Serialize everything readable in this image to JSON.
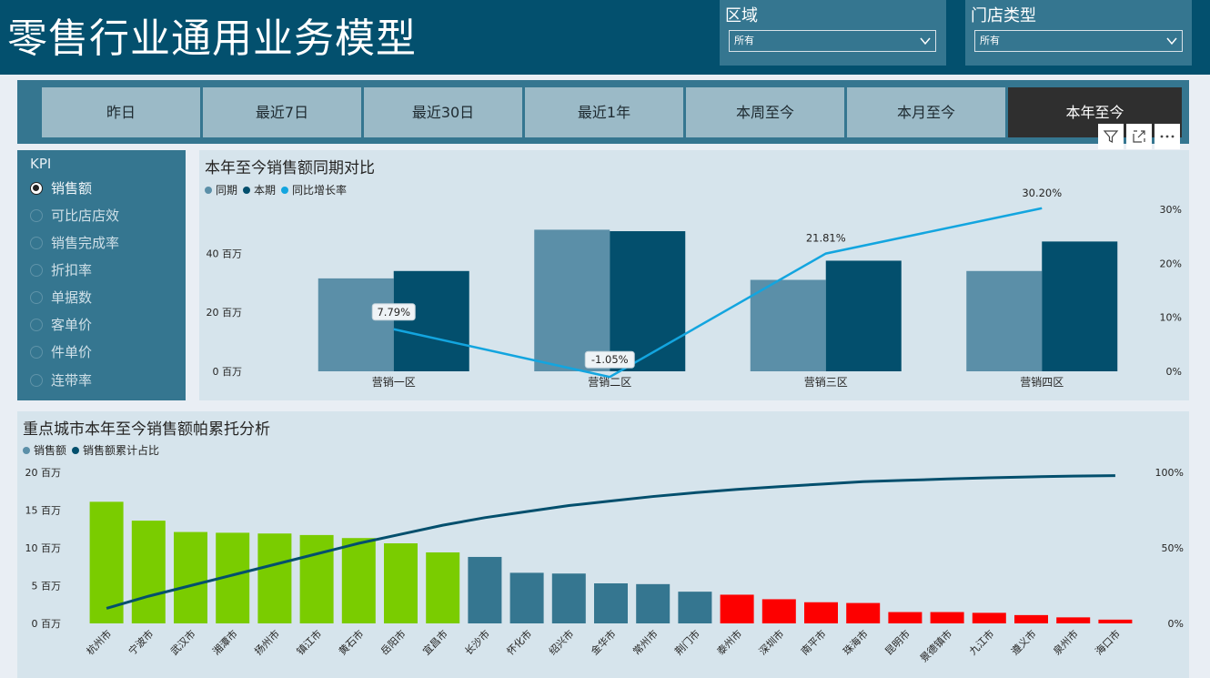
{
  "header": {
    "title": "零售行业通用业务模型",
    "filters": [
      {
        "label": "区域",
        "value": "所有"
      },
      {
        "label": "门店类型",
        "value": "所有"
      }
    ]
  },
  "period_tabs": [
    {
      "label": "昨日",
      "active": false
    },
    {
      "label": "最近7日",
      "active": false
    },
    {
      "label": "最近30日",
      "active": false
    },
    {
      "label": "最近1年",
      "active": false
    },
    {
      "label": "本周至今",
      "active": false
    },
    {
      "label": "本月至今",
      "active": false
    },
    {
      "label": "本年至今",
      "active": true
    }
  ],
  "toolbar": {
    "icons": [
      "filter-icon",
      "focus-mode-icon",
      "more-options-icon"
    ]
  },
  "kpi": {
    "title": "KPI",
    "items": [
      "销售额",
      "可比店店效",
      "销售完成率",
      "折扣率",
      "单据数",
      "客单价",
      "件单价",
      "连带率"
    ],
    "selected": "销售额"
  },
  "colors": {
    "prior": "#5b8fa8",
    "current": "#034f6d",
    "growth": "#13a5df",
    "top": "#7acc00",
    "mid": "#357690",
    "low": "#fd0000",
    "cumulative": "#034f6d"
  },
  "chart_data": [
    {
      "type": "bar",
      "title": "本年至今销售额同期对比",
      "categories": [
        "营销一区",
        "营销二区",
        "营销三区",
        "营销四区"
      ],
      "series": [
        {
          "name": "同期",
          "values": [
            31.5,
            48.0,
            31.0,
            34.0
          ]
        },
        {
          "name": "本期",
          "values": [
            34.0,
            47.5,
            37.5,
            44.0
          ]
        },
        {
          "name": "同比增长率",
          "type": "line",
          "axis": "right",
          "values": [
            7.79,
            -1.05,
            21.81,
            30.2
          ],
          "labels": [
            "7.79%",
            "-1.05%",
            "21.81%",
            "30.20%"
          ]
        }
      ],
      "y_ticks": [
        "0 百万",
        "20 百万",
        "40 百万"
      ],
      "y_tick_values": [
        0,
        20,
        40
      ],
      "ylim": [
        0,
        58
      ],
      "y2_ticks": [
        "0%",
        "10%",
        "20%",
        "30%"
      ],
      "y2_tick_values": [
        0,
        10,
        20,
        30
      ],
      "y2lim": [
        0,
        30
      ],
      "legend": "top-left"
    },
    {
      "type": "bar",
      "title": "重点城市本年至今销售额帕累托分析",
      "categories": [
        "杭州市",
        "宁波市",
        "武汉市",
        "湘潭市",
        "扬州市",
        "镇江市",
        "黄石市",
        "岳阳市",
        "宜昌市",
        "长沙市",
        "怀化市",
        "绍兴市",
        "金华市",
        "常州市",
        "荆门市",
        "泰州市",
        "深圳市",
        "南平市",
        "珠海市",
        "昆明市",
        "景德镇市",
        "九江市",
        "遵义市",
        "泉州市",
        "海口市"
      ],
      "series": [
        {
          "name": "销售额",
          "values": [
            16.1,
            13.6,
            12.1,
            12.0,
            11.9,
            11.7,
            11.3,
            10.6,
            9.4,
            8.8,
            6.7,
            6.6,
            5.3,
            5.2,
            4.2,
            3.8,
            3.2,
            2.8,
            2.7,
            1.5,
            1.5,
            1.4,
            1.1,
            0.8,
            0.5
          ]
        },
        {
          "name": "销售额累计占比",
          "type": "line",
          "axis": "right",
          "values": [
            0.1,
            0.18,
            0.25,
            0.32,
            0.39,
            0.46,
            0.53,
            0.59,
            0.65,
            0.7,
            0.74,
            0.78,
            0.81,
            0.84,
            0.865,
            0.887,
            0.905,
            0.922,
            0.938,
            0.947,
            0.956,
            0.964,
            0.97,
            0.975,
            0.978
          ]
        }
      ],
      "group_colors": [
        "top",
        "top",
        "top",
        "top",
        "top",
        "top",
        "top",
        "top",
        "top",
        "mid",
        "mid",
        "mid",
        "mid",
        "mid",
        "mid",
        "low",
        "low",
        "low",
        "low",
        "low",
        "low",
        "low",
        "low",
        "low",
        "low"
      ],
      "y_ticks": [
        "0 百万",
        "5 百万",
        "10 百万",
        "15 百万",
        "20 百万"
      ],
      "y_tick_values": [
        0,
        5,
        10,
        15,
        20
      ],
      "ylim": [
        0,
        20
      ],
      "y2_ticks": [
        "0%",
        "50%",
        "100%"
      ],
      "y2_tick_values": [
        0,
        0.5,
        1
      ],
      "y2lim": [
        0,
        1
      ],
      "legend": "top-left"
    }
  ]
}
